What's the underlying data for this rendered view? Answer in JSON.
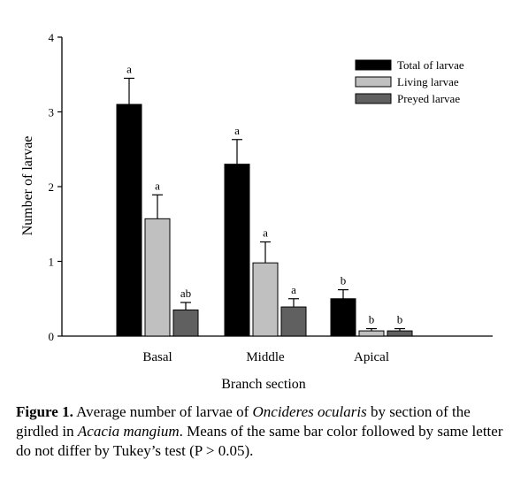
{
  "chart_data": {
    "type": "bar",
    "xlabel": "Branch section",
    "ylabel": "Number of larvae",
    "ylim": [
      0,
      4
    ],
    "yticks": [
      "0",
      "1",
      "2",
      "3",
      "4"
    ],
    "categories": [
      "Basal",
      "Middle",
      "Apical"
    ],
    "legend_position": "top-right",
    "series": [
      {
        "name": "Total of larvae",
        "color": "#000000",
        "values": [
          3.1,
          2.3,
          0.5
        ],
        "errors": [
          0.35,
          0.33,
          0.12
        ],
        "letters": [
          "a",
          "a",
          "b"
        ]
      },
      {
        "name": "Living larvae",
        "color": "#c0c0c0",
        "values": [
          1.57,
          0.98,
          0.07
        ],
        "errors": [
          0.32,
          0.28,
          0.03
        ],
        "letters": [
          "a",
          "a",
          "b"
        ]
      },
      {
        "name": "Preyed larvae",
        "color": "#606060",
        "values": [
          0.35,
          0.39,
          0.07
        ],
        "errors": [
          0.1,
          0.11,
          0.03
        ],
        "letters": [
          "ab",
          "a",
          "b"
        ]
      }
    ]
  },
  "caption": {
    "label": "Figure 1.",
    "part1": " Average number of larvae of ",
    "species": "Oncideres ocularis",
    "part2": " by section of the girdled in ",
    "host": "Acacia mangium",
    "part3": ". Means of the same bar color followed by same letter do not differ by Tukey’s test (P > 0.05)."
  }
}
